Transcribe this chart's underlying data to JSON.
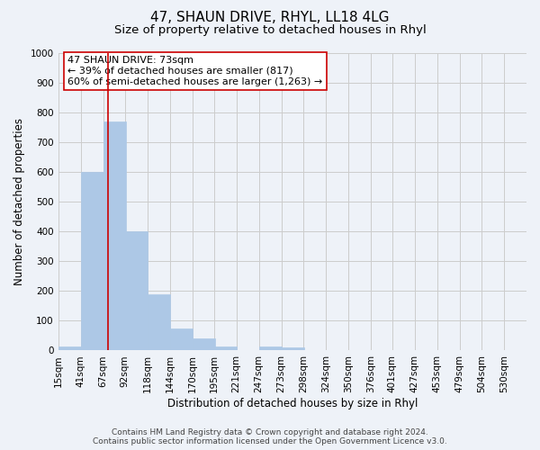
{
  "title": "47, SHAUN DRIVE, RHYL, LL18 4LG",
  "subtitle": "Size of property relative to detached houses in Rhyl",
  "xlabel": "Distribution of detached houses by size in Rhyl",
  "ylabel": "Number of detached properties",
  "bar_labels": [
    "15sqm",
    "41sqm",
    "67sqm",
    "92sqm",
    "118sqm",
    "144sqm",
    "170sqm",
    "195sqm",
    "221sqm",
    "247sqm",
    "273sqm",
    "298sqm",
    "324sqm",
    "350sqm",
    "376sqm",
    "401sqm",
    "427sqm",
    "453sqm",
    "479sqm",
    "504sqm",
    "530sqm"
  ],
  "bar_values": [
    15,
    600,
    770,
    400,
    190,
    75,
    40,
    15,
    0,
    15,
    10,
    0,
    0,
    0,
    0,
    0,
    0,
    0,
    0,
    0,
    0
  ],
  "bar_color": "#adc8e6",
  "bar_edge_color": "#adc8e6",
  "vline_x": 73,
  "vline_color": "#cc0000",
  "ylim": [
    0,
    1000
  ],
  "yticks": [
    0,
    100,
    200,
    300,
    400,
    500,
    600,
    700,
    800,
    900,
    1000
  ],
  "annotation_text": "47 SHAUN DRIVE: 73sqm\n← 39% of detached houses are smaller (817)\n60% of semi-detached houses are larger (1,263) →",
  "annotation_box_color": "#ffffff",
  "annotation_box_edge_color": "#cc0000",
  "grid_color": "#cccccc",
  "background_color": "#eef2f8",
  "footnote_line1": "Contains HM Land Registry data © Crown copyright and database right 2024.",
  "footnote_line2": "Contains public sector information licensed under the Open Government Licence v3.0.",
  "bin_width": 26,
  "title_fontsize": 11,
  "subtitle_fontsize": 9.5,
  "axis_label_fontsize": 8.5,
  "tick_fontsize": 7.5,
  "annotation_fontsize": 8,
  "footnote_fontsize": 6.5
}
